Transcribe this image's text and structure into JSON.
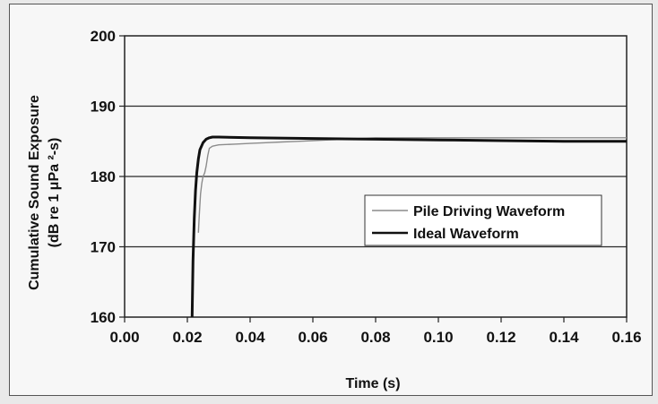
{
  "chart_data": {
    "type": "line",
    "xlabel": "Time (s)",
    "ylabel_line1": "Cumulative Sound Exposure",
    "ylabel_line2": "(dB re 1 μPa ²-s)",
    "xlim": [
      0.0,
      0.16
    ],
    "ylim": [
      160,
      200
    ],
    "x_ticks": [
      0.0,
      0.02,
      0.04,
      0.06,
      0.08,
      0.1,
      0.12,
      0.14,
      0.16
    ],
    "x_tick_labels": [
      "0.00",
      "0.02",
      "0.04",
      "0.06",
      "0.08",
      "0.10",
      "0.12",
      "0.14",
      "0.16"
    ],
    "y_ticks": [
      160,
      170,
      180,
      190,
      200
    ],
    "y_tick_labels": [
      "160",
      "170",
      "180",
      "190",
      "200"
    ],
    "grid": "horizontal",
    "legend_position": "right",
    "series": [
      {
        "name": "Pile Driving Waveform",
        "color": "#8c8c8c",
        "x": [
          0.0235,
          0.0238,
          0.0242,
          0.0246,
          0.025,
          0.0255,
          0.026,
          0.0265,
          0.027,
          0.028,
          0.03,
          0.035,
          0.04,
          0.045,
          0.05,
          0.055,
          0.06,
          0.065,
          0.07,
          0.075,
          0.08,
          0.09,
          0.1,
          0.12,
          0.14,
          0.16
        ],
        "y": [
          172.0,
          174.5,
          177.5,
          179.0,
          180.0,
          180.5,
          181.5,
          183.0,
          184.0,
          184.3,
          184.5,
          184.6,
          184.7,
          184.8,
          184.9,
          185.0,
          185.1,
          185.2,
          185.3,
          185.4,
          185.5,
          185.5,
          185.5,
          185.5,
          185.5,
          185.5
        ]
      },
      {
        "name": "Ideal Waveform",
        "color": "#111111",
        "x": [
          0.0215,
          0.0218,
          0.0222,
          0.0226,
          0.023,
          0.0235,
          0.024,
          0.025,
          0.026,
          0.027,
          0.028,
          0.03,
          0.04,
          0.06,
          0.08,
          0.1,
          0.12,
          0.14,
          0.16
        ],
        "y": [
          160.0,
          168.0,
          174.0,
          178.0,
          180.5,
          182.5,
          183.8,
          184.8,
          185.3,
          185.5,
          185.6,
          185.6,
          185.5,
          185.4,
          185.3,
          185.2,
          185.1,
          185.0,
          185.0
        ]
      }
    ]
  }
}
